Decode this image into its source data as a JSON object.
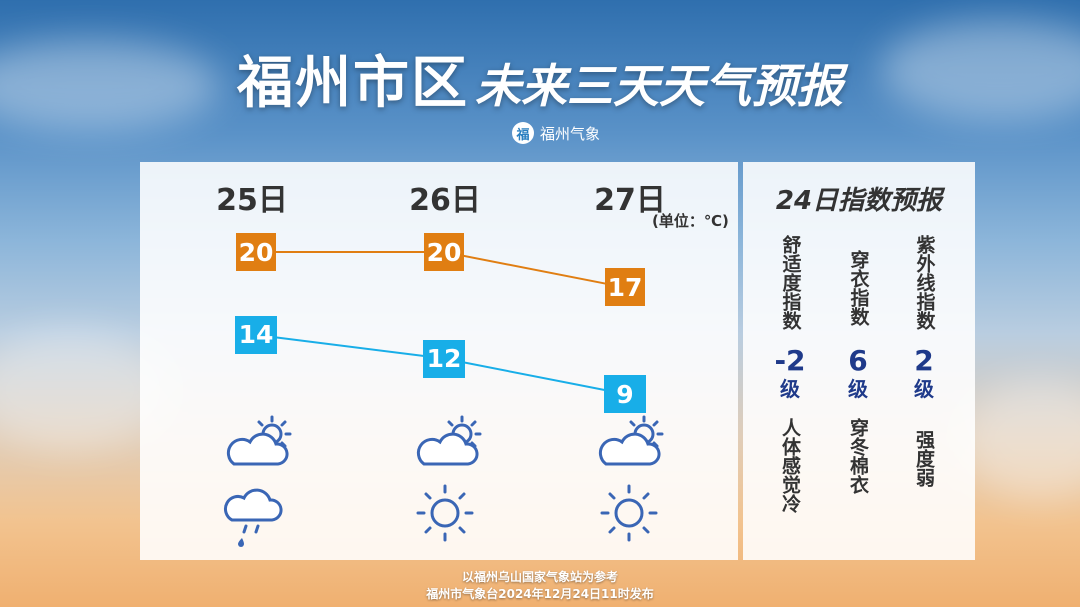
{
  "header": {
    "title_city": "福州市区",
    "title_rest": "未来三天天气预报",
    "brand_logo": "福",
    "brand_name": "福州气象"
  },
  "forecast": {
    "unit": "(单位：℃)",
    "days": [
      {
        "label": "25日",
        "high": 20,
        "low": 14,
        "day_icon": "partly-cloudy-icon",
        "night_icon": "cloud-rain-icon"
      },
      {
        "label": "26日",
        "high": 20,
        "low": 12,
        "day_icon": "partly-cloudy-icon",
        "night_icon": "sun-icon"
      },
      {
        "label": "27日",
        "high": 17,
        "low": 9,
        "day_icon": "partly-cloudy-icon",
        "night_icon": "sun-icon"
      }
    ],
    "colors": {
      "high": "#e07e12",
      "low": "#18aee8"
    }
  },
  "index": {
    "title": "24日指数预报",
    "items": [
      {
        "name": "舒适度指数",
        "value": "-2",
        "level": "级",
        "desc": "人体感觉冷"
      },
      {
        "name": "穿衣指数",
        "value": "6",
        "level": "级",
        "desc": "穿冬棉衣"
      },
      {
        "name": "紫外线指数",
        "value": "2",
        "level": "级",
        "desc": "强度弱"
      }
    ]
  },
  "footer": {
    "line1": "以福州乌山国家气象站为参考",
    "line2": "福州市气象台2024年12月24日11时发布"
  }
}
